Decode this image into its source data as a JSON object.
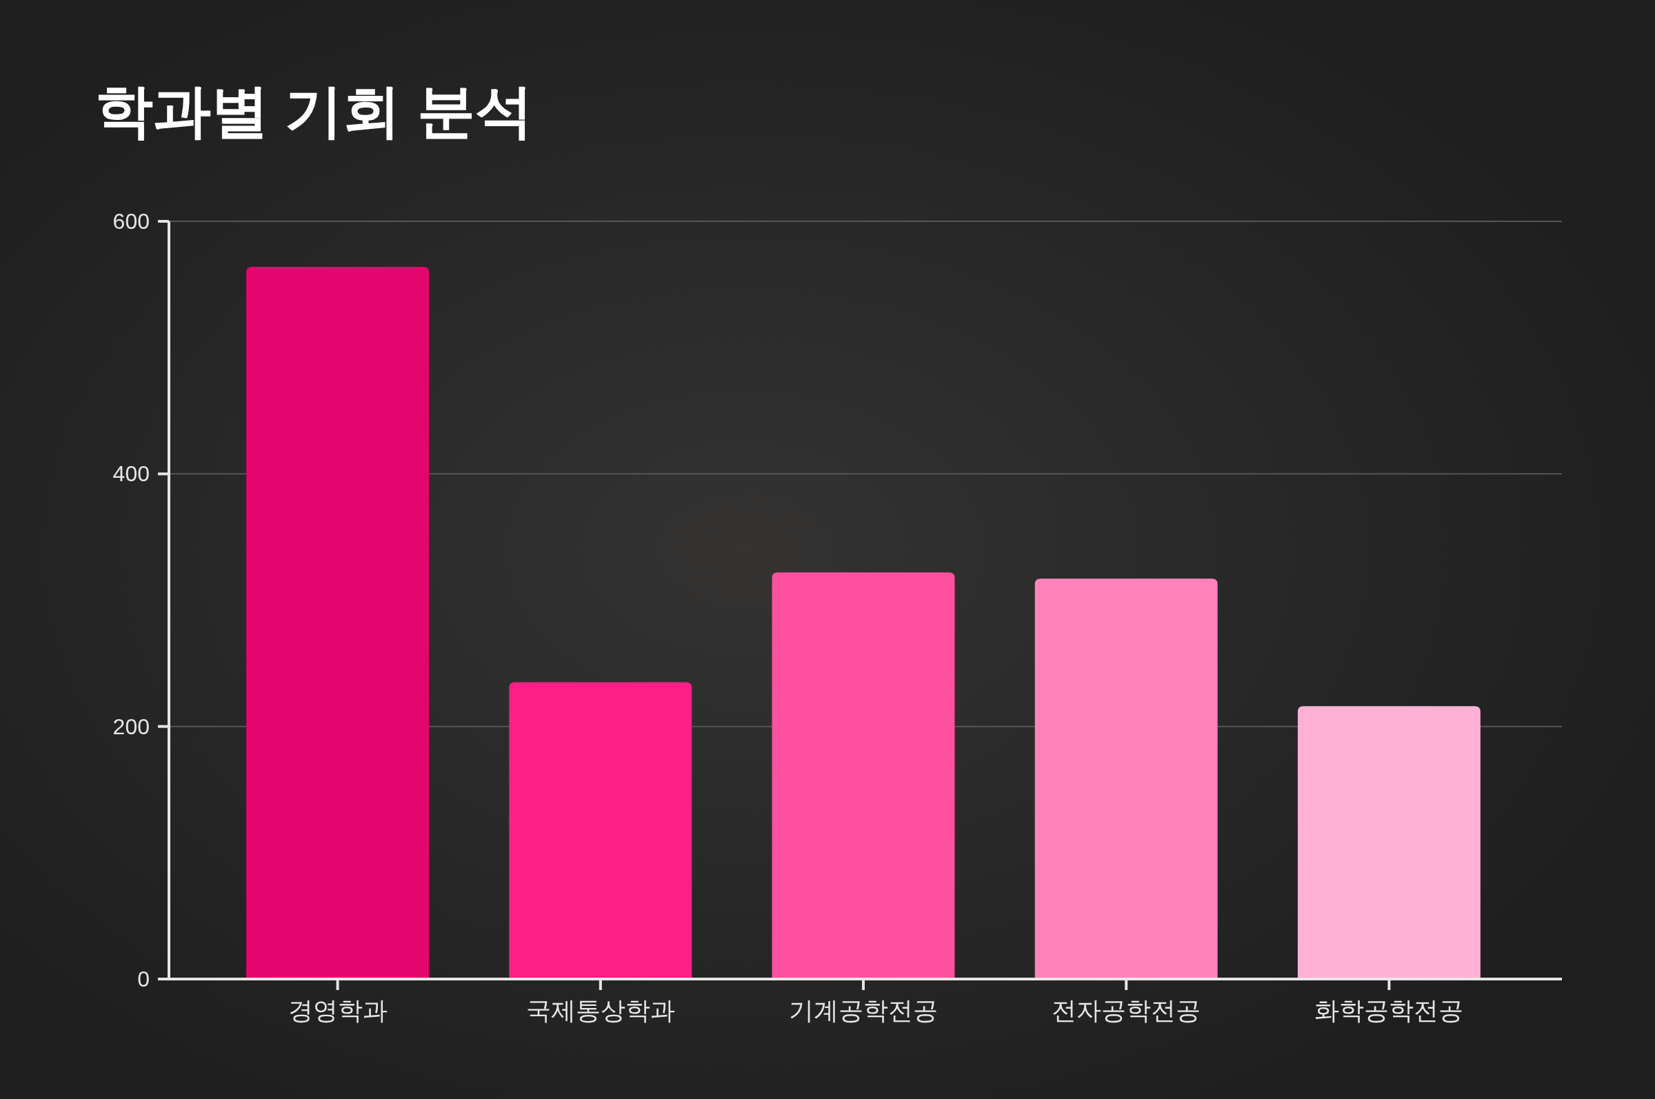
{
  "chart_data": {
    "type": "bar",
    "title": "학과별 기회 분석",
    "categories": [
      "경영학과",
      "국제통상학과",
      "기계공학전공",
      "전자공학전공",
      "화학공학전공"
    ],
    "values": [
      564,
      235,
      322,
      317,
      216
    ],
    "colors": [
      "#e4056f",
      "#fe1f87",
      "#fe50a0",
      "#fe83bb",
      "#feb1d4"
    ],
    "ylim": [
      0,
      600
    ],
    "yticks": [
      0,
      200,
      400,
      600
    ],
    "grid": "y"
  }
}
